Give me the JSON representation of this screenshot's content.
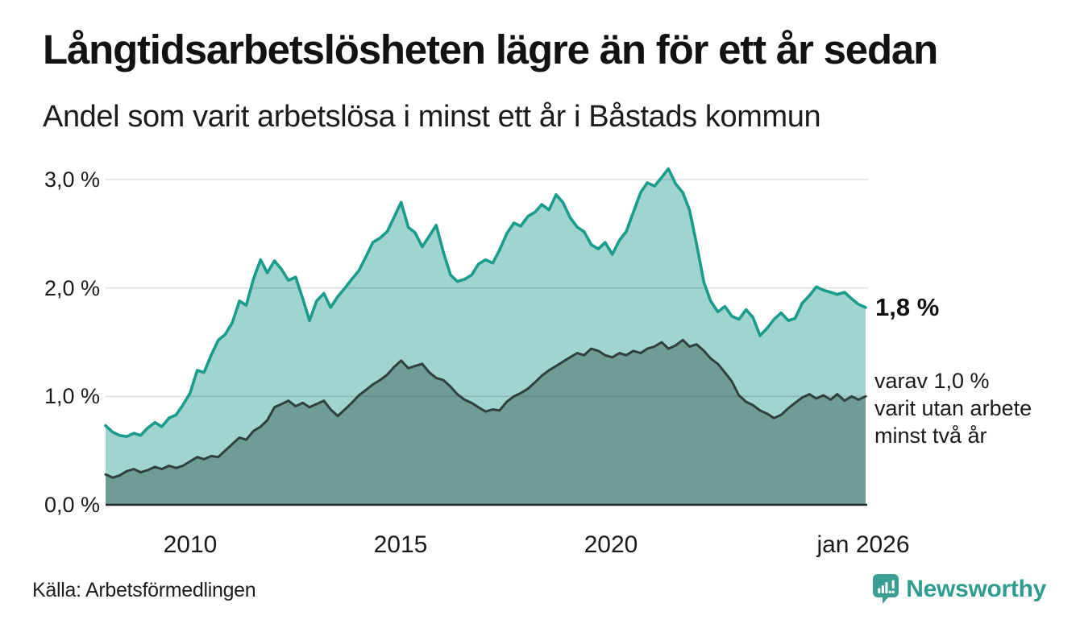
{
  "header": {
    "title": "Långtidsarbetslösheten lägre än för ett år sedan",
    "subtitle": "Andel som varit arbetslösa i minst ett år i Båstads kommun"
  },
  "chart_data": {
    "type": "area",
    "title": "Långtidsarbetslösheten lägre än för ett år sedan",
    "subtitle": "Andel som varit arbetslösa i minst ett år i Båstads kommun",
    "grid": true,
    "legend_position": "end-of-line-labels",
    "x_axis": {
      "ticks": [
        "2010",
        "2015",
        "2020",
        "jan 2026"
      ],
      "tick_years": [
        2010,
        2015,
        2020,
        2026
      ],
      "range": [
        2008.0,
        2026.0
      ]
    },
    "y_axis": {
      "unit": "%",
      "ticks": [
        "3,0 %",
        "2,0 %",
        "1,0 %",
        "0,0 %"
      ],
      "tick_values": [
        3,
        2,
        1,
        0
      ],
      "range": [
        0,
        3.25
      ]
    },
    "colors": {
      "line_1yr": "#1a9c8c",
      "fill_1yr": "#a0d4ce",
      "line_2yr": "#2f403d",
      "fill_2yr": "#6f9d96",
      "gridline": "rgba(40,40,60,0.16)",
      "baseline": "#26262b"
    },
    "annotations": {
      "series1_end_label": "1,8 %",
      "series2_end_label_lines": [
        "varav 1,0 %",
        "varit utan arbete",
        "minst två år"
      ]
    },
    "series": [
      {
        "name": "Andel som varit arbetslösa i minst ett år",
        "end_value": 1.8,
        "color": "#1a9c8c",
        "fill": "#a0d4ce",
        "points": [
          [
            2008.0,
            0.73
          ],
          [
            2008.17,
            0.67
          ],
          [
            2008.33,
            0.64
          ],
          [
            2008.5,
            0.63
          ],
          [
            2008.67,
            0.66
          ],
          [
            2008.83,
            0.64
          ],
          [
            2009.0,
            0.71
          ],
          [
            2009.17,
            0.76
          ],
          [
            2009.33,
            0.72
          ],
          [
            2009.5,
            0.8
          ],
          [
            2009.67,
            0.83
          ],
          [
            2009.83,
            0.92
          ],
          [
            2010.0,
            1.03
          ],
          [
            2010.17,
            1.24
          ],
          [
            2010.33,
            1.22
          ],
          [
            2010.5,
            1.38
          ],
          [
            2010.67,
            1.52
          ],
          [
            2010.83,
            1.57
          ],
          [
            2011.0,
            1.68
          ],
          [
            2011.17,
            1.88
          ],
          [
            2011.33,
            1.84
          ],
          [
            2011.5,
            2.08
          ],
          [
            2011.67,
            2.26
          ],
          [
            2011.83,
            2.14
          ],
          [
            2012.0,
            2.25
          ],
          [
            2012.17,
            2.17
          ],
          [
            2012.33,
            2.07
          ],
          [
            2012.5,
            2.1
          ],
          [
            2012.67,
            1.9
          ],
          [
            2012.83,
            1.7
          ],
          [
            2013.0,
            1.88
          ],
          [
            2013.17,
            1.95
          ],
          [
            2013.33,
            1.82
          ],
          [
            2013.5,
            1.92
          ],
          [
            2013.67,
            2.0
          ],
          [
            2013.83,
            2.08
          ],
          [
            2014.0,
            2.16
          ],
          [
            2014.17,
            2.29
          ],
          [
            2014.33,
            2.42
          ],
          [
            2014.5,
            2.46
          ],
          [
            2014.67,
            2.52
          ],
          [
            2014.83,
            2.65
          ],
          [
            2015.0,
            2.79
          ],
          [
            2015.17,
            2.56
          ],
          [
            2015.33,
            2.51
          ],
          [
            2015.5,
            2.38
          ],
          [
            2015.67,
            2.48
          ],
          [
            2015.83,
            2.58
          ],
          [
            2016.0,
            2.33
          ],
          [
            2016.17,
            2.12
          ],
          [
            2016.33,
            2.06
          ],
          [
            2016.5,
            2.08
          ],
          [
            2016.67,
            2.12
          ],
          [
            2016.83,
            2.22
          ],
          [
            2017.0,
            2.26
          ],
          [
            2017.17,
            2.23
          ],
          [
            2017.33,
            2.35
          ],
          [
            2017.5,
            2.5
          ],
          [
            2017.67,
            2.6
          ],
          [
            2017.83,
            2.57
          ],
          [
            2018.0,
            2.66
          ],
          [
            2018.17,
            2.7
          ],
          [
            2018.33,
            2.77
          ],
          [
            2018.5,
            2.72
          ],
          [
            2018.67,
            2.86
          ],
          [
            2018.83,
            2.79
          ],
          [
            2019.0,
            2.65
          ],
          [
            2019.17,
            2.56
          ],
          [
            2019.33,
            2.52
          ],
          [
            2019.5,
            2.4
          ],
          [
            2019.67,
            2.36
          ],
          [
            2019.83,
            2.42
          ],
          [
            2020.0,
            2.31
          ],
          [
            2020.17,
            2.44
          ],
          [
            2020.33,
            2.52
          ],
          [
            2020.5,
            2.7
          ],
          [
            2020.67,
            2.88
          ],
          [
            2020.83,
            2.97
          ],
          [
            2021.0,
            2.94
          ],
          [
            2021.17,
            3.02
          ],
          [
            2021.33,
            3.1
          ],
          [
            2021.5,
            2.96
          ],
          [
            2021.67,
            2.88
          ],
          [
            2021.83,
            2.72
          ],
          [
            2022.0,
            2.4
          ],
          [
            2022.17,
            2.05
          ],
          [
            2022.33,
            1.88
          ],
          [
            2022.5,
            1.78
          ],
          [
            2022.67,
            1.83
          ],
          [
            2022.83,
            1.74
          ],
          [
            2023.0,
            1.71
          ],
          [
            2023.17,
            1.8
          ],
          [
            2023.33,
            1.73
          ],
          [
            2023.5,
            1.56
          ],
          [
            2023.67,
            1.63
          ],
          [
            2023.83,
            1.71
          ],
          [
            2024.0,
            1.77
          ],
          [
            2024.17,
            1.7
          ],
          [
            2024.33,
            1.72
          ],
          [
            2024.5,
            1.86
          ],
          [
            2024.67,
            1.93
          ],
          [
            2024.83,
            2.01
          ],
          [
            2025.0,
            1.98
          ],
          [
            2025.17,
            1.96
          ],
          [
            2025.33,
            1.94
          ],
          [
            2025.5,
            1.96
          ],
          [
            2025.67,
            1.9
          ],
          [
            2025.83,
            1.85
          ],
          [
            2026.0,
            1.82
          ]
        ]
      },
      {
        "name": "varav varit utan arbete minst två år",
        "end_value": 1.0,
        "color": "#2f403d",
        "fill": "#6f9d96",
        "points": [
          [
            2008.0,
            0.28
          ],
          [
            2008.17,
            0.25
          ],
          [
            2008.33,
            0.27
          ],
          [
            2008.5,
            0.31
          ],
          [
            2008.67,
            0.33
          ],
          [
            2008.83,
            0.3
          ],
          [
            2009.0,
            0.32
          ],
          [
            2009.17,
            0.35
          ],
          [
            2009.33,
            0.33
          ],
          [
            2009.5,
            0.36
          ],
          [
            2009.67,
            0.34
          ],
          [
            2009.83,
            0.36
          ],
          [
            2010.0,
            0.4
          ],
          [
            2010.17,
            0.44
          ],
          [
            2010.33,
            0.42
          ],
          [
            2010.5,
            0.45
          ],
          [
            2010.67,
            0.44
          ],
          [
            2010.83,
            0.5
          ],
          [
            2011.0,
            0.56
          ],
          [
            2011.17,
            0.62
          ],
          [
            2011.33,
            0.6
          ],
          [
            2011.5,
            0.68
          ],
          [
            2011.67,
            0.72
          ],
          [
            2011.83,
            0.78
          ],
          [
            2012.0,
            0.9
          ],
          [
            2012.17,
            0.93
          ],
          [
            2012.33,
            0.96
          ],
          [
            2012.5,
            0.91
          ],
          [
            2012.67,
            0.94
          ],
          [
            2012.83,
            0.9
          ],
          [
            2013.0,
            0.93
          ],
          [
            2013.17,
            0.96
          ],
          [
            2013.33,
            0.88
          ],
          [
            2013.5,
            0.82
          ],
          [
            2013.67,
            0.88
          ],
          [
            2013.83,
            0.94
          ],
          [
            2014.0,
            1.01
          ],
          [
            2014.17,
            1.06
          ],
          [
            2014.33,
            1.11
          ],
          [
            2014.5,
            1.15
          ],
          [
            2014.67,
            1.2
          ],
          [
            2014.83,
            1.27
          ],
          [
            2015.0,
            1.33
          ],
          [
            2015.17,
            1.26
          ],
          [
            2015.33,
            1.28
          ],
          [
            2015.5,
            1.3
          ],
          [
            2015.67,
            1.22
          ],
          [
            2015.83,
            1.17
          ],
          [
            2016.0,
            1.15
          ],
          [
            2016.17,
            1.09
          ],
          [
            2016.33,
            1.02
          ],
          [
            2016.5,
            0.97
          ],
          [
            2016.67,
            0.94
          ],
          [
            2016.83,
            0.9
          ],
          [
            2017.0,
            0.86
          ],
          [
            2017.17,
            0.88
          ],
          [
            2017.33,
            0.87
          ],
          [
            2017.5,
            0.95
          ],
          [
            2017.67,
            1.0
          ],
          [
            2017.83,
            1.03
          ],
          [
            2018.0,
            1.07
          ],
          [
            2018.17,
            1.13
          ],
          [
            2018.33,
            1.19
          ],
          [
            2018.5,
            1.24
          ],
          [
            2018.67,
            1.28
          ],
          [
            2018.83,
            1.32
          ],
          [
            2019.0,
            1.36
          ],
          [
            2019.17,
            1.4
          ],
          [
            2019.33,
            1.38
          ],
          [
            2019.5,
            1.44
          ],
          [
            2019.67,
            1.42
          ],
          [
            2019.83,
            1.38
          ],
          [
            2020.0,
            1.36
          ],
          [
            2020.17,
            1.4
          ],
          [
            2020.33,
            1.38
          ],
          [
            2020.5,
            1.42
          ],
          [
            2020.67,
            1.4
          ],
          [
            2020.83,
            1.44
          ],
          [
            2021.0,
            1.46
          ],
          [
            2021.17,
            1.5
          ],
          [
            2021.33,
            1.44
          ],
          [
            2021.5,
            1.47
          ],
          [
            2021.67,
            1.52
          ],
          [
            2021.83,
            1.46
          ],
          [
            2022.0,
            1.48
          ],
          [
            2022.17,
            1.42
          ],
          [
            2022.33,
            1.35
          ],
          [
            2022.5,
            1.3
          ],
          [
            2022.67,
            1.22
          ],
          [
            2022.83,
            1.14
          ],
          [
            2023.0,
            1.01
          ],
          [
            2023.17,
            0.95
          ],
          [
            2023.33,
            0.92
          ],
          [
            2023.5,
            0.87
          ],
          [
            2023.67,
            0.84
          ],
          [
            2023.83,
            0.8
          ],
          [
            2024.0,
            0.83
          ],
          [
            2024.17,
            0.89
          ],
          [
            2024.33,
            0.94
          ],
          [
            2024.5,
            0.99
          ],
          [
            2024.67,
            1.02
          ],
          [
            2024.83,
            0.98
          ],
          [
            2025.0,
            1.01
          ],
          [
            2025.17,
            0.97
          ],
          [
            2025.33,
            1.02
          ],
          [
            2025.5,
            0.96
          ],
          [
            2025.67,
            1.0
          ],
          [
            2025.83,
            0.97
          ],
          [
            2026.0,
            1.0
          ]
        ]
      }
    ]
  },
  "footer": {
    "source": "Källa: Arbetsförmedlingen",
    "brand": "Newsworthy"
  }
}
